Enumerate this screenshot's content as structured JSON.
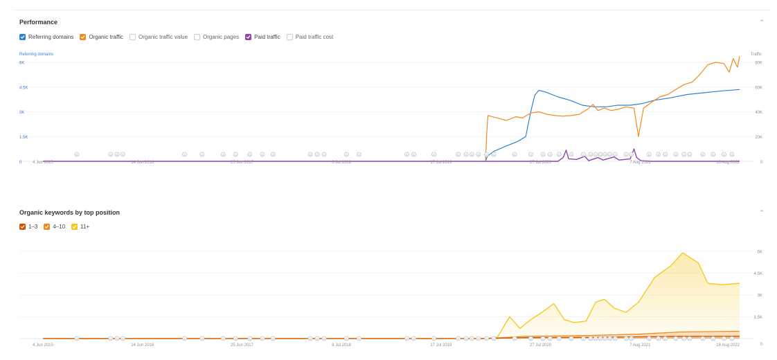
{
  "performance": {
    "title": "Performance",
    "legend": [
      {
        "label": "Referring domains",
        "checked": true,
        "color": "#2f80d0"
      },
      {
        "label": "Organic traffic",
        "checked": true,
        "color": "#f08a1c"
      },
      {
        "label": "Organic traffic value",
        "checked": false,
        "color": "#c7cbd1"
      },
      {
        "label": "Organic pages",
        "checked": false,
        "color": "#c7cbd1"
      },
      {
        "label": "Paid traffic",
        "checked": true,
        "color": "#8e44ad"
      },
      {
        "label": "Paid traffic cost",
        "checked": false,
        "color": "#c7cbd1"
      }
    ],
    "left_axis_name": "Referring domains",
    "right_axis_name": "Traffic",
    "chart_data": {
      "type": "line",
      "x_ticks": [
        "4 Jun 2015",
        "14 Jun 2016",
        "25 Jun 2017",
        "6 Jul 2018",
        "17 Jul 2019",
        "27 Jul 2020",
        "7 Aug 2021",
        "18 Aug 2022"
      ],
      "y_left_ticks": [
        "0",
        "1.5K",
        "3K",
        "4.5K",
        "6K"
      ],
      "y_right_ticks": [
        "0",
        "20K",
        "40K",
        "60K",
        "80K"
      ],
      "y_left_range": [
        0,
        6000
      ],
      "y_right_range": [
        0,
        80000
      ],
      "series": [
        {
          "name": "Referring domains",
          "axis": "left",
          "color": "#2f80d0",
          "points": [
            [
              "2020-01-01",
              0
            ],
            [
              "2020-01-08",
              300
            ],
            [
              "2020-02-01",
              600
            ],
            [
              "2020-03-15",
              900
            ],
            [
              "2020-05-01",
              1200
            ],
            [
              "2020-06-01",
              1500
            ],
            [
              "2020-06-20",
              3000
            ],
            [
              "2020-07-05",
              4000
            ],
            [
              "2020-07-20",
              4300
            ],
            [
              "2020-08-15",
              4200
            ],
            [
              "2020-10-01",
              3900
            ],
            [
              "2020-11-15",
              3700
            ],
            [
              "2021-01-01",
              3400
            ],
            [
              "2021-02-15",
              3300
            ],
            [
              "2021-04-01",
              3300
            ],
            [
              "2021-05-15",
              3400
            ],
            [
              "2021-07-01",
              3400
            ],
            [
              "2021-08-15",
              3500
            ],
            [
              "2021-10-01",
              3700
            ],
            [
              "2021-12-01",
              3850
            ],
            [
              "2022-02-01",
              4050
            ],
            [
              "2022-04-01",
              4150
            ],
            [
              "2022-06-01",
              4250
            ],
            [
              "2022-08-18",
              4350
            ]
          ]
        },
        {
          "name": "Organic traffic",
          "axis": "right",
          "color": "#f08a1c",
          "points": [
            [
              "2020-01-01",
              0
            ],
            [
              "2020-01-05",
              20000
            ],
            [
              "2020-01-10",
              37000
            ],
            [
              "2020-02-15",
              35000
            ],
            [
              "2020-03-20",
              33000
            ],
            [
              "2020-04-25",
              36000
            ],
            [
              "2020-05-20",
              35000
            ],
            [
              "2020-06-20",
              39000
            ],
            [
              "2020-07-20",
              40000
            ],
            [
              "2020-08-20",
              38000
            ],
            [
              "2020-09-20",
              37000
            ],
            [
              "2020-10-20",
              36500
            ],
            [
              "2020-11-20",
              37000
            ],
            [
              "2020-12-20",
              38000
            ],
            [
              "2021-01-20",
              42000
            ],
            [
              "2021-02-10",
              46000
            ],
            [
              "2021-03-01",
              41000
            ],
            [
              "2021-03-25",
              43000
            ],
            [
              "2021-04-20",
              41000
            ],
            [
              "2021-05-15",
              42000
            ],
            [
              "2021-06-15",
              44000
            ],
            [
              "2021-07-15",
              43000
            ],
            [
              "2021-08-01",
              20000
            ],
            [
              "2021-08-20",
              43000
            ],
            [
              "2021-09-15",
              47000
            ],
            [
              "2021-10-20",
              52000
            ],
            [
              "2021-11-20",
              54000
            ],
            [
              "2021-12-20",
              58000
            ],
            [
              "2022-01-20",
              62000
            ],
            [
              "2022-02-20",
              64000
            ],
            [
              "2022-03-20",
              70000
            ],
            [
              "2022-04-20",
              78000
            ],
            [
              "2022-05-20",
              80000
            ],
            [
              "2022-06-20",
              79000
            ],
            [
              "2022-07-10",
              72000
            ],
            [
              "2022-07-25",
              83000
            ],
            [
              "2022-08-10",
              76000
            ],
            [
              "2022-08-18",
              85000
            ]
          ]
        },
        {
          "name": "Paid traffic",
          "axis": "right",
          "color": "#8e44ad",
          "points": [
            [
              "2015-06-04",
              0
            ],
            [
              "2020-10-01",
              0
            ],
            [
              "2020-10-20",
              3000
            ],
            [
              "2020-11-01",
              9000
            ],
            [
              "2020-11-10",
              2000
            ],
            [
              "2020-12-10",
              1500
            ],
            [
              "2021-01-10",
              4000
            ],
            [
              "2021-01-25",
              500
            ],
            [
              "2021-03-01",
              3000
            ],
            [
              "2021-03-20",
              1000
            ],
            [
              "2021-05-01",
              3500
            ],
            [
              "2021-05-20",
              1000
            ],
            [
              "2021-07-01",
              2000
            ],
            [
              "2021-07-15",
              10000
            ],
            [
              "2021-07-25",
              3000
            ],
            [
              "2021-08-10",
              500
            ],
            [
              "2021-09-15",
              0
            ],
            [
              "2022-08-18",
              0
            ]
          ]
        }
      ]
    }
  },
  "keywords": {
    "title": "Organic keywords by top position",
    "legend": [
      {
        "label": "1–3",
        "checked": true,
        "color": "#d35400"
      },
      {
        "label": "4–10",
        "checked": true,
        "color": "#f08a1c"
      },
      {
        "label": "11+",
        "checked": true,
        "color": "#f5c518"
      }
    ],
    "chart_data": {
      "type": "area",
      "x_ticks": [
        "4 Jun 2015",
        "14 Jun 2016",
        "25 Jun 2017",
        "6 Jul 2018",
        "17 Jul 2019",
        "27 Jul 2020",
        "7 Aug 2021",
        "18 Aug 2022"
      ],
      "y_right_ticks": [
        "0",
        "1.5K",
        "3K",
        "4.5K",
        "6K"
      ],
      "y_range": [
        0,
        6000
      ],
      "series": [
        {
          "name": "11+",
          "color": "#f5c518",
          "points": [
            [
              "2015-06-04",
              0
            ],
            [
              "2020-01-01",
              0
            ],
            [
              "2020-02-15",
              100
            ],
            [
              "2020-04-01",
              1500
            ],
            [
              "2020-05-10",
              700
            ],
            [
              "2020-06-20",
              1300
            ],
            [
              "2020-08-01",
              1800
            ],
            [
              "2020-09-15",
              2400
            ],
            [
              "2020-10-25",
              1300
            ],
            [
              "2020-12-01",
              1100
            ],
            [
              "2021-01-15",
              1200
            ],
            [
              "2021-02-20",
              2500
            ],
            [
              "2021-03-25",
              2700
            ],
            [
              "2021-05-01",
              2100
            ],
            [
              "2021-06-15",
              1800
            ],
            [
              "2021-08-01",
              2500
            ],
            [
              "2021-10-01",
              4200
            ],
            [
              "2021-12-01",
              5000
            ],
            [
              "2022-01-15",
              5900
            ],
            [
              "2022-03-15",
              5200
            ],
            [
              "2022-04-20",
              3800
            ],
            [
              "2022-06-10",
              3700
            ],
            [
              "2022-08-18",
              3800
            ]
          ]
        },
        {
          "name": "4–10",
          "color": "#f08a1c",
          "points": [
            [
              "2015-06-04",
              0
            ],
            [
              "2020-01-01",
              0
            ],
            [
              "2020-06-01",
              150
            ],
            [
              "2021-01-01",
              200
            ],
            [
              "2021-08-01",
              300
            ],
            [
              "2022-01-01",
              450
            ],
            [
              "2022-08-18",
              500
            ]
          ]
        },
        {
          "name": "1–3",
          "color": "#d35400",
          "points": [
            [
              "2015-06-04",
              0
            ],
            [
              "2020-01-01",
              0
            ],
            [
              "2020-06-01",
              60
            ],
            [
              "2021-01-01",
              80
            ],
            [
              "2021-08-01",
              120
            ],
            [
              "2022-01-01",
              150
            ],
            [
              "2022-08-18",
              160
            ]
          ]
        }
      ]
    }
  }
}
